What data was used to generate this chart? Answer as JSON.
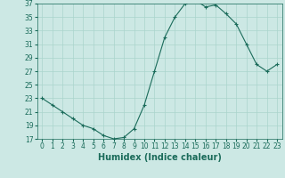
{
  "x": [
    0,
    1,
    2,
    3,
    4,
    5,
    6,
    7,
    8,
    9,
    10,
    11,
    12,
    13,
    14,
    15,
    16,
    17,
    18,
    19,
    20,
    21,
    22,
    23
  ],
  "y": [
    23,
    22,
    21,
    20,
    19,
    18.5,
    17.5,
    17,
    17.2,
    18.5,
    22,
    27,
    32,
    35,
    37,
    37.5,
    36.5,
    36.8,
    35.5,
    34,
    31,
    28,
    27,
    28
  ],
  "color": "#1a6b5a",
  "marker": "+",
  "marker_size": 3,
  "bg_color": "#cce8e4",
  "grid_color": "#aad4cc",
  "xlabel": "Humidex (Indice chaleur)",
  "ylim": [
    17,
    37
  ],
  "xlim": [
    -0.5,
    23.5
  ],
  "yticks": [
    17,
    19,
    21,
    23,
    25,
    27,
    29,
    31,
    33,
    35,
    37
  ],
  "xtick_labels": [
    "0",
    "1",
    "2",
    "3",
    "4",
    "5",
    "6",
    "7",
    "8",
    "9",
    "10",
    "11",
    "12",
    "13",
    "14",
    "15",
    "16",
    "17",
    "18",
    "19",
    "20",
    "21",
    "22",
    "23"
  ],
  "tick_color": "#1a6b5a",
  "axis_color": "#1a6b5a",
  "label_fontsize": 7,
  "tick_fontsize": 5.5
}
